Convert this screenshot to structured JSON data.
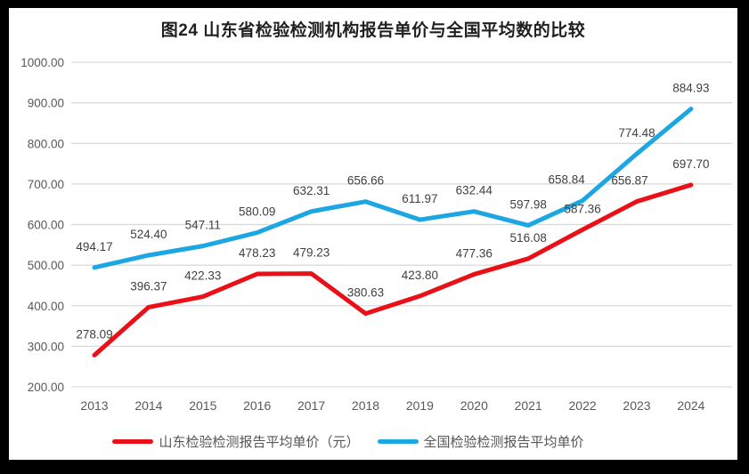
{
  "figure": {
    "frame_color": "#000000",
    "background_color": "#ffffff"
  },
  "chart_data": {
    "type": "line",
    "title": "图24  山东省检验检测机构报告单价与全国平均数的比较",
    "categories": [
      "2013",
      "2014",
      "2015",
      "2016",
      "2017",
      "2018",
      "2019",
      "2020",
      "2021",
      "2022",
      "2023",
      "2024"
    ],
    "series": [
      {
        "name": "山东检验检测报告平均单价（元）",
        "color": "#e91117",
        "values": [
          278.09,
          396.37,
          422.33,
          478.23,
          479.23,
          380.63,
          423.8,
          477.36,
          516.08,
          587.36,
          656.87,
          697.7
        ]
      },
      {
        "name": "全国检验检测报告平均单价",
        "color": "#1ca7e3",
        "values": [
          494.17,
          524.4,
          547.11,
          580.09,
          632.31,
          656.66,
          611.97,
          632.44,
          597.98,
          658.84,
          774.48,
          884.93
        ]
      }
    ],
    "xlabel": "",
    "ylabel": "",
    "ylim": [
      200,
      1000
    ],
    "y_ticks": [
      1000,
      900,
      800,
      700,
      600,
      500,
      400,
      300,
      200
    ],
    "y_tick_labels": [
      "1000.00",
      "900.00",
      "800.00",
      "700.00",
      "600.00",
      "500.00",
      "400.00",
      "300.00",
      "200.00"
    ],
    "grid": true,
    "data_labels": true,
    "legend_position": "bottom",
    "gridline_color": "#d9d9d9",
    "axis_text_color": "#595959",
    "data_label_color": "#404040"
  }
}
